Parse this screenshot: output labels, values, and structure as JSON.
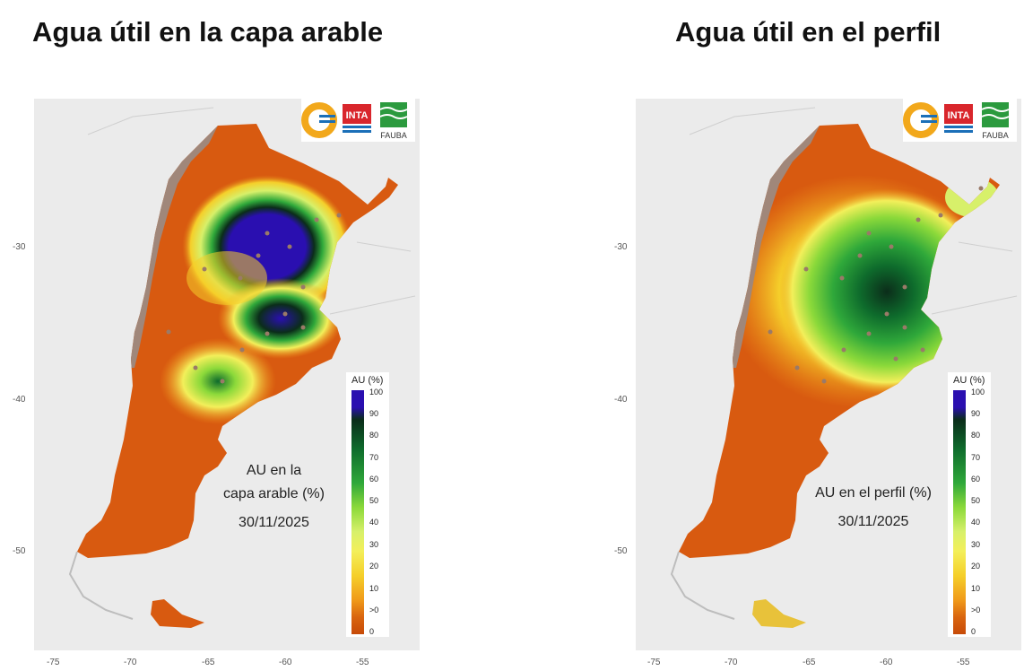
{
  "titles": {
    "left": "Agua útil en la capa arable",
    "right": "Agua útil en el perfil"
  },
  "maps": {
    "left": {
      "caption_lines": [
        "AU en la",
        "capa arable (%)"
      ],
      "date": "30/11/2025"
    },
    "right": {
      "caption_lines": [
        "AU en el perfil (%)"
      ],
      "date": "30/11/2025"
    }
  },
  "legend": {
    "title": "AU (%)",
    "ticks": [
      "100",
      "90",
      "80",
      "70",
      "60",
      "50",
      "40",
      "30",
      "20",
      "10",
      ">0",
      "0"
    ],
    "colors": [
      "#2a0fb0",
      "#0b2d1a",
      "#0e6b2c",
      "#2fa83a",
      "#8bd93a",
      "#d7f06a",
      "#f3ef5a",
      "#f5cf2a",
      "#f09a1a",
      "#d9650f",
      "#c74a08"
    ]
  },
  "axes": {
    "y_ticks": [
      "-30",
      "-40",
      "-50"
    ],
    "x_ticks": [
      "-75",
      "-70",
      "-65",
      "-60",
      "-55"
    ]
  },
  "logos": {
    "names": [
      "conae-logo",
      "inta-logo",
      "fauba-logo"
    ],
    "inta_text": "INTA",
    "fauba_text": "FAUBA"
  },
  "colors": {
    "dry": "#d85a10",
    "mountain": "#a0877a",
    "very_wet": "#2a0fb0",
    "background": "#ebebeb"
  }
}
